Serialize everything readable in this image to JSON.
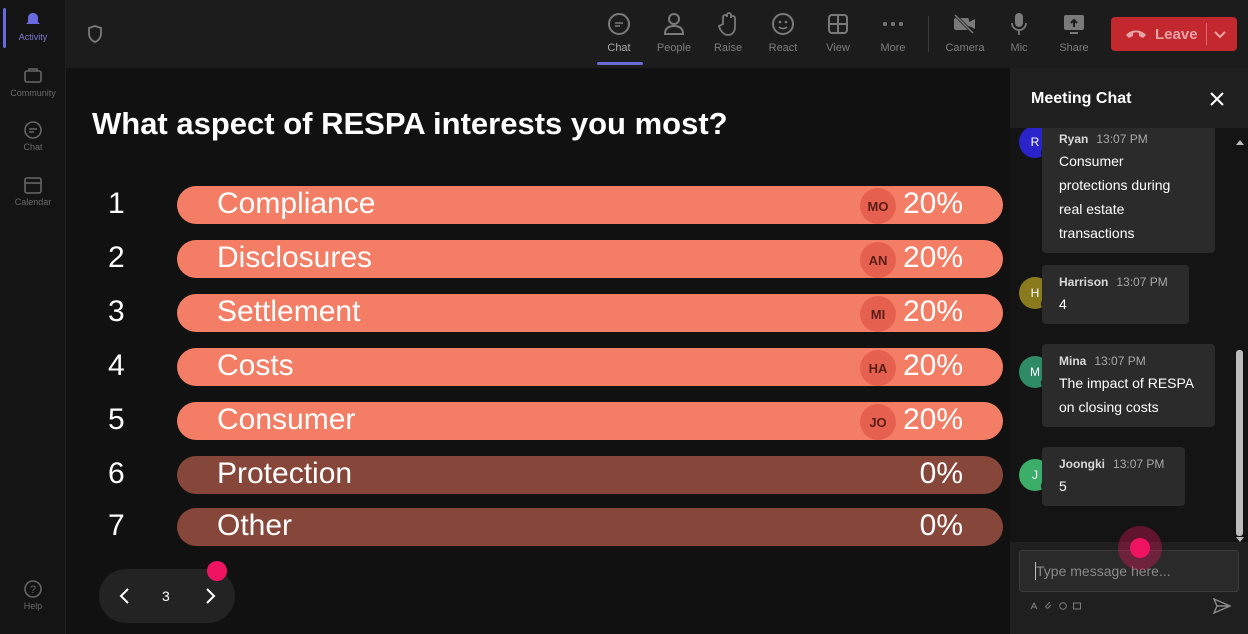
{
  "rail": {
    "items": [
      {
        "label": "Activity",
        "icon": "bell-icon"
      },
      {
        "label": "Community",
        "icon": "community-icon"
      },
      {
        "label": "Chat",
        "icon": "chat-icon"
      },
      {
        "label": "Calendar",
        "icon": "calendar-icon"
      },
      {
        "label": "Help",
        "icon": "help-icon"
      }
    ]
  },
  "toolbar": {
    "chat": "Chat",
    "people": "People",
    "raise": "Raise",
    "react": "React",
    "view": "View",
    "more": "More",
    "camera": "Camera",
    "mic": "Mic",
    "share": "Share",
    "leave": "Leave"
  },
  "poll": {
    "question": "What aspect of RESPA interests you most?",
    "options": [
      {
        "num": "1",
        "label": "Compliance",
        "badge": "MO",
        "pct": "20%",
        "percent": 20
      },
      {
        "num": "2",
        "label": "Disclosures",
        "badge": "AN",
        "pct": "20%",
        "percent": 20
      },
      {
        "num": "3",
        "label": "Settlement",
        "badge": "MI",
        "pct": "20%",
        "percent": 20
      },
      {
        "num": "4",
        "label": "Costs",
        "badge": "HA",
        "pct": "20%",
        "percent": 20
      },
      {
        "num": "5",
        "label": "Consumer",
        "badge": "JO",
        "pct": "20%",
        "percent": 20
      },
      {
        "num": "6",
        "label": "Protection",
        "badge": "",
        "pct": "0%",
        "percent": 0
      },
      {
        "num": "7",
        "label": "Other",
        "badge": "",
        "pct": "0%",
        "percent": 0
      }
    ],
    "page": "3"
  },
  "chat": {
    "title": "Meeting Chat",
    "placeholder": "Type message here...",
    "messages": [
      {
        "initial": "R",
        "name": "Ryan",
        "time": "13:07 PM",
        "lines": [
          "Consumer",
          "protections during",
          "real estate",
          "transactions"
        ],
        "color": "#2a23c9"
      },
      {
        "initial": "H",
        "name": "Harrison",
        "time": "13:07 PM",
        "lines": [
          "4"
        ],
        "color": "#8a7a1e"
      },
      {
        "initial": "M",
        "name": "Mina",
        "time": "13:07 PM",
        "lines": [
          "The impact of RESPA",
          "on closing costs"
        ],
        "color": "#2f8a66"
      },
      {
        "initial": "J",
        "name": "Joongki",
        "time": "13:07 PM",
        "lines": [
          "5"
        ],
        "color": "#3cae6a"
      }
    ]
  },
  "colors": {
    "bar_voted": "#f47e65",
    "bar_empty": "#86463a",
    "accent": "#6b6bd8",
    "leave": "#c4282f",
    "cursor_marker": "#f0135f"
  }
}
